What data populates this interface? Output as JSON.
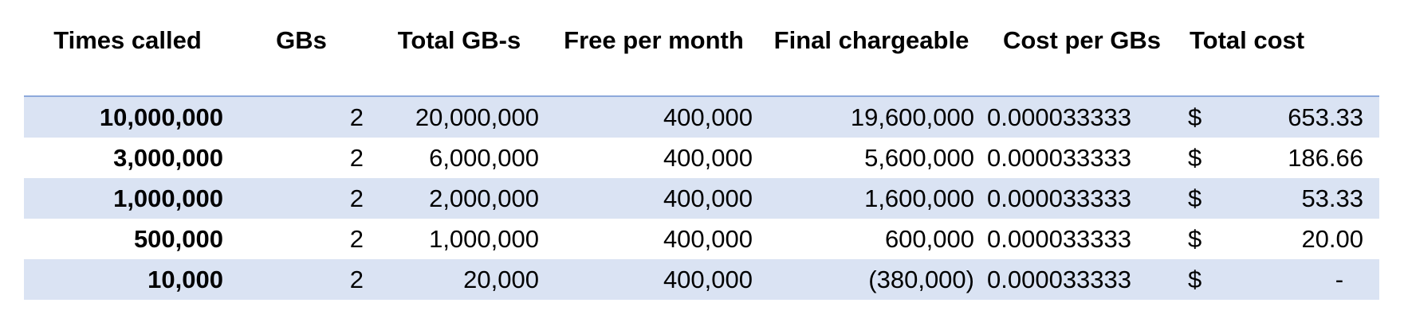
{
  "table": {
    "headers": {
      "times_called": "Times called",
      "gbs": "GBs",
      "total_gbs": "Total GB-s",
      "free_per_month": "Free per month",
      "final_chargeable": "Final chargeable",
      "cost_per_gbs": "Cost per GBs",
      "total_cost": "Total cost"
    },
    "rows": [
      {
        "times_called": "10,000,000",
        "gbs": "2",
        "total_gbs": "20,000,000",
        "free_per_month": "400,000",
        "final_chargeable": "19,600,000",
        "cost_per_gbs": "0.000033333",
        "currency": "$",
        "total_cost": "653.33"
      },
      {
        "times_called": "3,000,000",
        "gbs": "2",
        "total_gbs": "6,000,000",
        "free_per_month": "400,000",
        "final_chargeable": "5,600,000",
        "cost_per_gbs": "0.000033333",
        "currency": "$",
        "total_cost": "186.66"
      },
      {
        "times_called": "1,000,000",
        "gbs": "2",
        "total_gbs": "2,000,000",
        "free_per_month": "400,000",
        "final_chargeable": "1,600,000",
        "cost_per_gbs": "0.000033333",
        "currency": "$",
        "total_cost": "53.33"
      },
      {
        "times_called": "500,000",
        "gbs": "2",
        "total_gbs": "1,000,000",
        "free_per_month": "400,000",
        "final_chargeable": "600,000",
        "cost_per_gbs": "0.000033333",
        "currency": "$",
        "total_cost": "20.00"
      },
      {
        "times_called": "10,000",
        "gbs": "2",
        "total_gbs": "20,000",
        "free_per_month": "400,000",
        "final_chargeable": "(380,000)",
        "cost_per_gbs": "0.000033333",
        "currency": "$",
        "total_cost": "-"
      }
    ]
  },
  "colors": {
    "band_fill": "#dae3f3",
    "header_rule": "#8ea9db"
  }
}
